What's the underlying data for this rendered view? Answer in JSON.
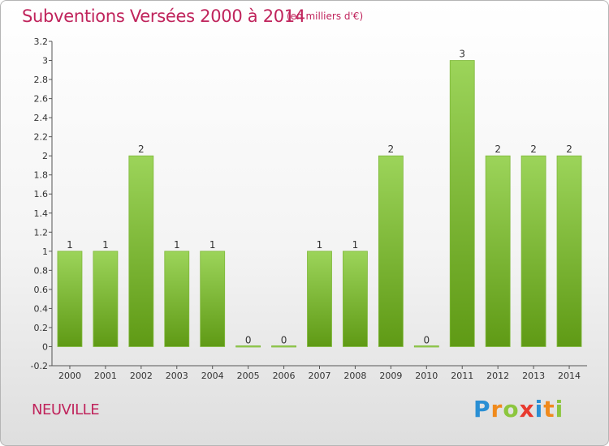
{
  "title": "Subventions Versées 2000 à 2014",
  "subtitle": "(en milliers d'€)",
  "commune": "NEUVILLE",
  "logo": {
    "letters": [
      "P",
      "r",
      "o",
      "x",
      "i",
      "t",
      "i"
    ],
    "colors": [
      "#2a8fd4",
      "#f08a1c",
      "#8cc63e",
      "#e83a2f",
      "#2a8fd4",
      "#f08a1c",
      "#8cc63e"
    ]
  },
  "colors": {
    "title": "#c0245c",
    "bar_light": "#9cd45a",
    "bar_dark": "#5f9a15",
    "bar_edge": "#7fb83a",
    "axis": "#555555"
  },
  "chart_data": {
    "type": "bar",
    "categories": [
      "2000",
      "2001",
      "2002",
      "2003",
      "2004",
      "2005",
      "2006",
      "2007",
      "2008",
      "2009",
      "2010",
      "2011",
      "2012",
      "2013",
      "2014"
    ],
    "values": [
      1,
      1,
      2,
      1,
      1,
      0,
      0,
      1,
      1,
      2,
      0,
      3,
      2,
      2,
      2
    ],
    "value_labels": [
      "1",
      "1",
      "2",
      "1",
      "1",
      "0",
      "0",
      "1",
      "1",
      "2",
      "0",
      "3",
      "2",
      "2",
      "2"
    ],
    "ylim": [
      -0.2,
      3.2
    ],
    "yticks": [
      "-0.2",
      "0",
      "0.2",
      "0.4",
      "0.6",
      "0.8",
      "1",
      "1.2",
      "1.4",
      "1.6",
      "1.8",
      "2",
      "2.2",
      "2.4",
      "2.6",
      "2.8",
      "3",
      "3.2"
    ],
    "ytick_values": [
      -0.2,
      0,
      0.2,
      0.4,
      0.6,
      0.8,
      1,
      1.2,
      1.4,
      1.6,
      1.8,
      2,
      2.2,
      2.4,
      2.6,
      2.8,
      3,
      3.2
    ],
    "grid": false
  }
}
